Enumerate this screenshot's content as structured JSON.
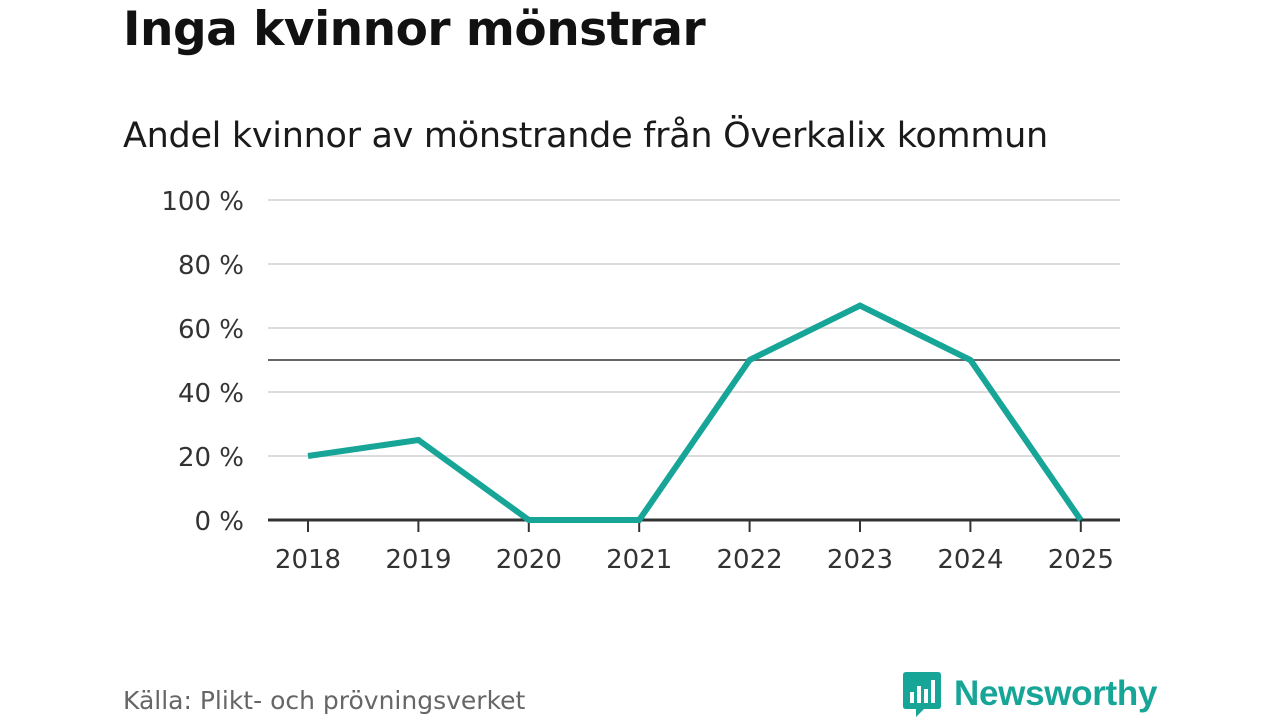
{
  "title": "Inga kvinnor mönstrar",
  "subtitle": "Andel kvinnor av mönstrande från Överkalix kommun",
  "source": "Källa: Plikt- och prövningsverket",
  "brand": {
    "name": "Newsworthy",
    "icon": "bar-chart-speech-bubble-icon",
    "color": "#17a598"
  },
  "chart_data": {
    "type": "line",
    "x": [
      "2018",
      "2019",
      "2020",
      "2021",
      "2022",
      "2023",
      "2024",
      "2025"
    ],
    "series": [
      {
        "values": [
          20,
          25,
          0,
          0,
          50,
          67,
          50,
          0
        ],
        "color": "#17a598"
      }
    ],
    "ylim": [
      0,
      100
    ],
    "yticks": [
      0,
      20,
      40,
      60,
      80,
      100
    ],
    "ytick_labels": [
      "0 %",
      "20 %",
      "40 %",
      "60 %",
      "80 %",
      "100 %"
    ],
    "reference_line": 50,
    "grid": true,
    "xlabel": "",
    "ylabel": ""
  }
}
